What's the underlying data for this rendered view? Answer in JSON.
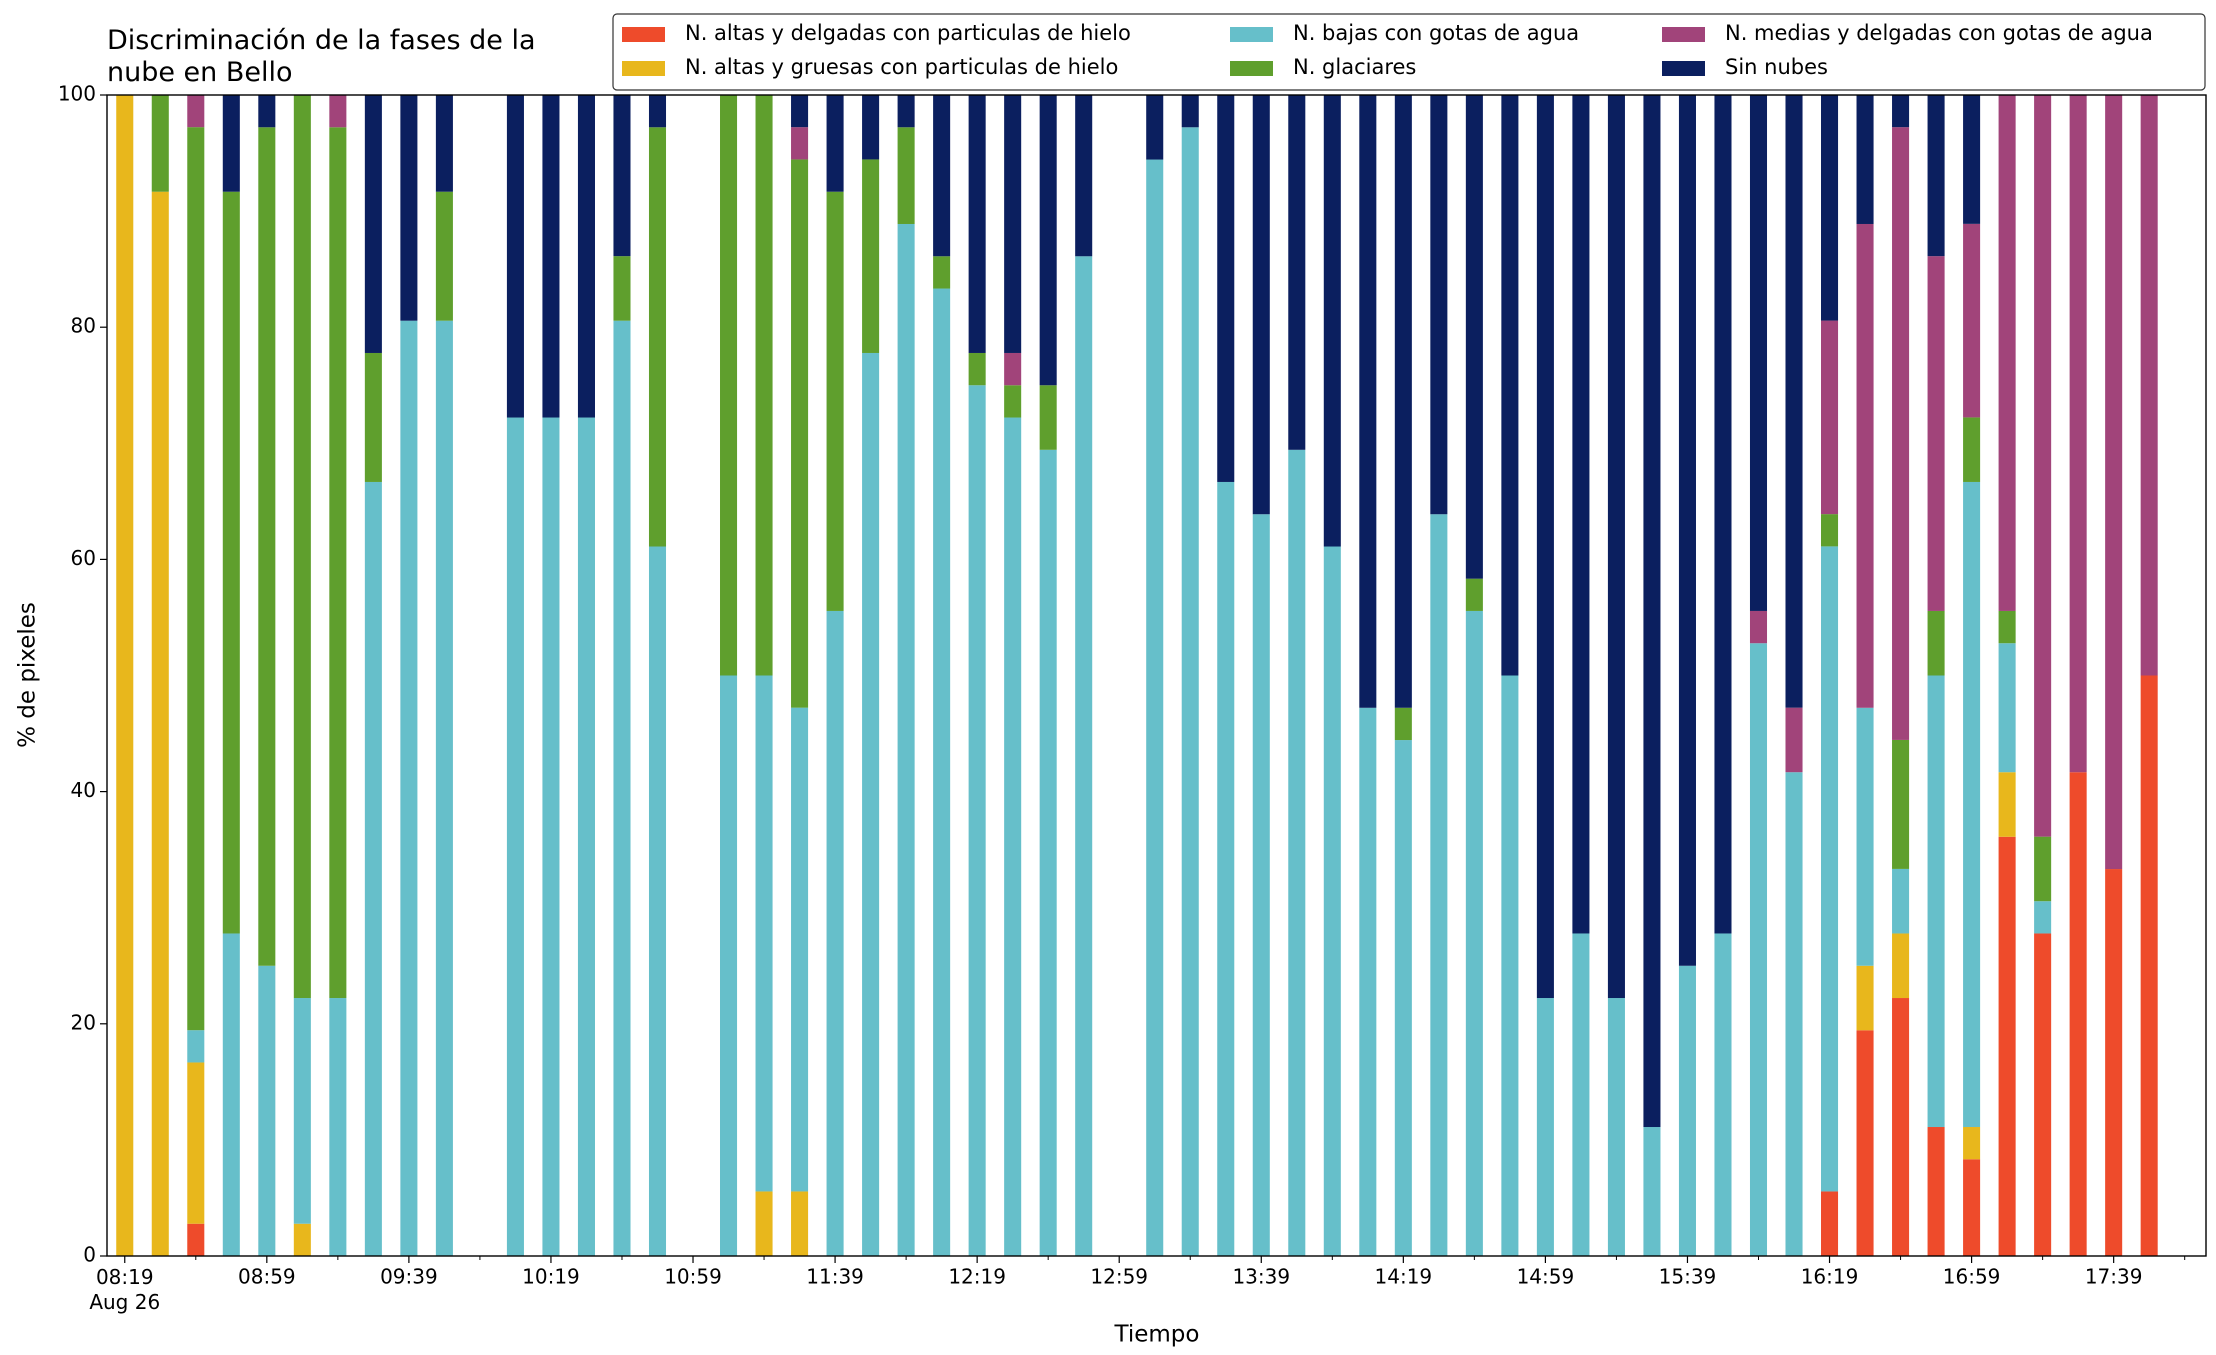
{
  "chart_data": {
    "type": "stacked-bar",
    "title": "Discriminación de la fases de la\nnube en Bello",
    "x_label": "Tiempo",
    "y_label": "% de pixeles",
    "x": [
      "08:19",
      "08:29",
      "08:39",
      "08:49",
      "08:59",
      "09:09",
      "09:19",
      "09:29",
      "09:39",
      "09:49",
      "09:59",
      "10:09",
      "10:19",
      "10:29",
      "10:39",
      "10:49",
      "10:59",
      "11:09",
      "11:19",
      "11:29",
      "11:39",
      "11:49",
      "11:59",
      "12:09",
      "12:19",
      "12:29",
      "12:39",
      "12:49",
      "12:59",
      "13:09",
      "13:19",
      "13:29",
      "13:39",
      "13:49",
      "13:59",
      "14:09",
      "14:19",
      "14:29",
      "14:39",
      "14:49",
      "14:59",
      "15:09",
      "15:19",
      "15:29",
      "15:39",
      "15:49",
      "15:59",
      "16:09",
      "16:19",
      "16:29",
      "16:39",
      "16:49",
      "16:59",
      "17:09",
      "17:19",
      "17:29",
      "17:39",
      "17:49"
    ],
    "series": [
      {
        "name": "N. altas y delgadas con particulas de hielo",
        "color": "#ee4b2b",
        "values": [
          0,
          0,
          2.78,
          0,
          0,
          0,
          0,
          0,
          0,
          0,
          null,
          0,
          0,
          0,
          0,
          0,
          null,
          0,
          0,
          0,
          0,
          0,
          0,
          0,
          0,
          0,
          0,
          0,
          null,
          0,
          0,
          0,
          0,
          0,
          0,
          0,
          0,
          0,
          0,
          0,
          0,
          0,
          0,
          0,
          0,
          0,
          0,
          0,
          5.56,
          19.44,
          22.22,
          11.11,
          8.33,
          36.11,
          27.78,
          41.67,
          33.33,
          50
        ]
      },
      {
        "name": "N. altas y gruesas con particulas de hielo",
        "color": "#e8b71c",
        "values": [
          100,
          91.67,
          13.89,
          0,
          0,
          2.78,
          0,
          0,
          0,
          0,
          null,
          0,
          0,
          0,
          0,
          0,
          null,
          0,
          5.56,
          5.56,
          0,
          0,
          0,
          0,
          0,
          0,
          0,
          0,
          null,
          0,
          0,
          0,
          0,
          0,
          0,
          0,
          0,
          0,
          0,
          0,
          0,
          0,
          0,
          0,
          0,
          0,
          0,
          0,
          0,
          5.56,
          5.56,
          0,
          2.78,
          5.56,
          0,
          0,
          0,
          0
        ]
      },
      {
        "name": "N. bajas con gotas de agua",
        "color": "#66bfca",
        "values": [
          0,
          0,
          2.78,
          27.78,
          25,
          19.44,
          22.22,
          66.67,
          80.56,
          80.56,
          null,
          72.22,
          72.22,
          72.22,
          80.56,
          61.11,
          null,
          50,
          44.44,
          41.67,
          55.56,
          77.78,
          88.89,
          83.33,
          75,
          72.22,
          69.44,
          86.11,
          null,
          94.44,
          97.22,
          66.67,
          63.89,
          69.44,
          61.11,
          47.22,
          44.44,
          63.89,
          55.56,
          50,
          22.22,
          27.78,
          22.22,
          11.11,
          25,
          27.78,
          52.78,
          41.67,
          55.56,
          22.22,
          5.56,
          38.89,
          55.56,
          11.11,
          2.78,
          0,
          0,
          0
        ]
      },
      {
        "name": "N. glaciares",
        "color": "#5f9f2d",
        "values": [
          0,
          8.33,
          77.78,
          63.89,
          72.22,
          77.78,
          75,
          11.11,
          0,
          11.11,
          null,
          0,
          0,
          0,
          5.56,
          36.11,
          null,
          50,
          50,
          47.22,
          36.11,
          16.67,
          8.33,
          2.78,
          2.78,
          2.78,
          5.56,
          0,
          null,
          0,
          0,
          0,
          0,
          0,
          0,
          0,
          2.78,
          0,
          2.78,
          0,
          0,
          0,
          0,
          0,
          0,
          0,
          0,
          0,
          2.78,
          0,
          11.11,
          5.56,
          5.56,
          2.78,
          5.56,
          0,
          0,
          0
        ]
      },
      {
        "name": "N. medias y delgadas con gotas de agua",
        "color": "#a1447a",
        "values": [
          0,
          0,
          2.78,
          0,
          0,
          0,
          2.78,
          0,
          0,
          0,
          null,
          0,
          0,
          0,
          0,
          0,
          null,
          0,
          0,
          2.78,
          0,
          0,
          0,
          0,
          0,
          2.78,
          0,
          0,
          null,
          0,
          0,
          0,
          0,
          0,
          0,
          0,
          0,
          0,
          0,
          0,
          0,
          0,
          0,
          0,
          0,
          0,
          2.78,
          5.56,
          16.67,
          41.67,
          52.78,
          30.56,
          16.67,
          44.44,
          63.89,
          58.33,
          66.67,
          50
        ]
      },
      {
        "name": "Sin nubes",
        "color": "#0b1f5f",
        "values": [
          0,
          0,
          0,
          8.33,
          2.78,
          0,
          0,
          22.22,
          19.44,
          8.33,
          null,
          27.78,
          27.78,
          27.78,
          13.89,
          2.78,
          null,
          0,
          0,
          2.78,
          8.33,
          5.56,
          2.78,
          13.89,
          22.22,
          22.22,
          25,
          13.89,
          null,
          5.56,
          2.78,
          33.33,
          36.11,
          30.56,
          38.89,
          52.78,
          52.78,
          36.11,
          41.67,
          50,
          77.78,
          72.22,
          77.78,
          88.89,
          75,
          72.22,
          44.44,
          52.78,
          19.44,
          11.11,
          2.78,
          13.89,
          11.11,
          0,
          0,
          0,
          0,
          0
        ]
      }
    ],
    "xlim": [
      "08:14",
      "18:05"
    ],
    "xticks": [
      {
        "value": "08:19",
        "label": "08:19\nAug 26"
      },
      "08:59",
      "09:39",
      "10:19",
      "10:59",
      "11:39",
      "12:19",
      "12:59",
      "13:39",
      "14:19",
      "14:59",
      "15:39",
      "16:19",
      "16:59",
      "17:39"
    ],
    "xminorticks": [
      "08:39",
      "09:19",
      "09:59",
      "10:39",
      "11:19",
      "11:59",
      "12:39",
      "13:19",
      "13:59",
      "14:39",
      "15:19",
      "15:59",
      "16:39",
      "17:19",
      "17:59"
    ],
    "ylim": [
      0,
      100
    ],
    "yticks": [
      0,
      20,
      40,
      60,
      80,
      100
    ],
    "grid": false,
    "legend": "upper right"
  }
}
